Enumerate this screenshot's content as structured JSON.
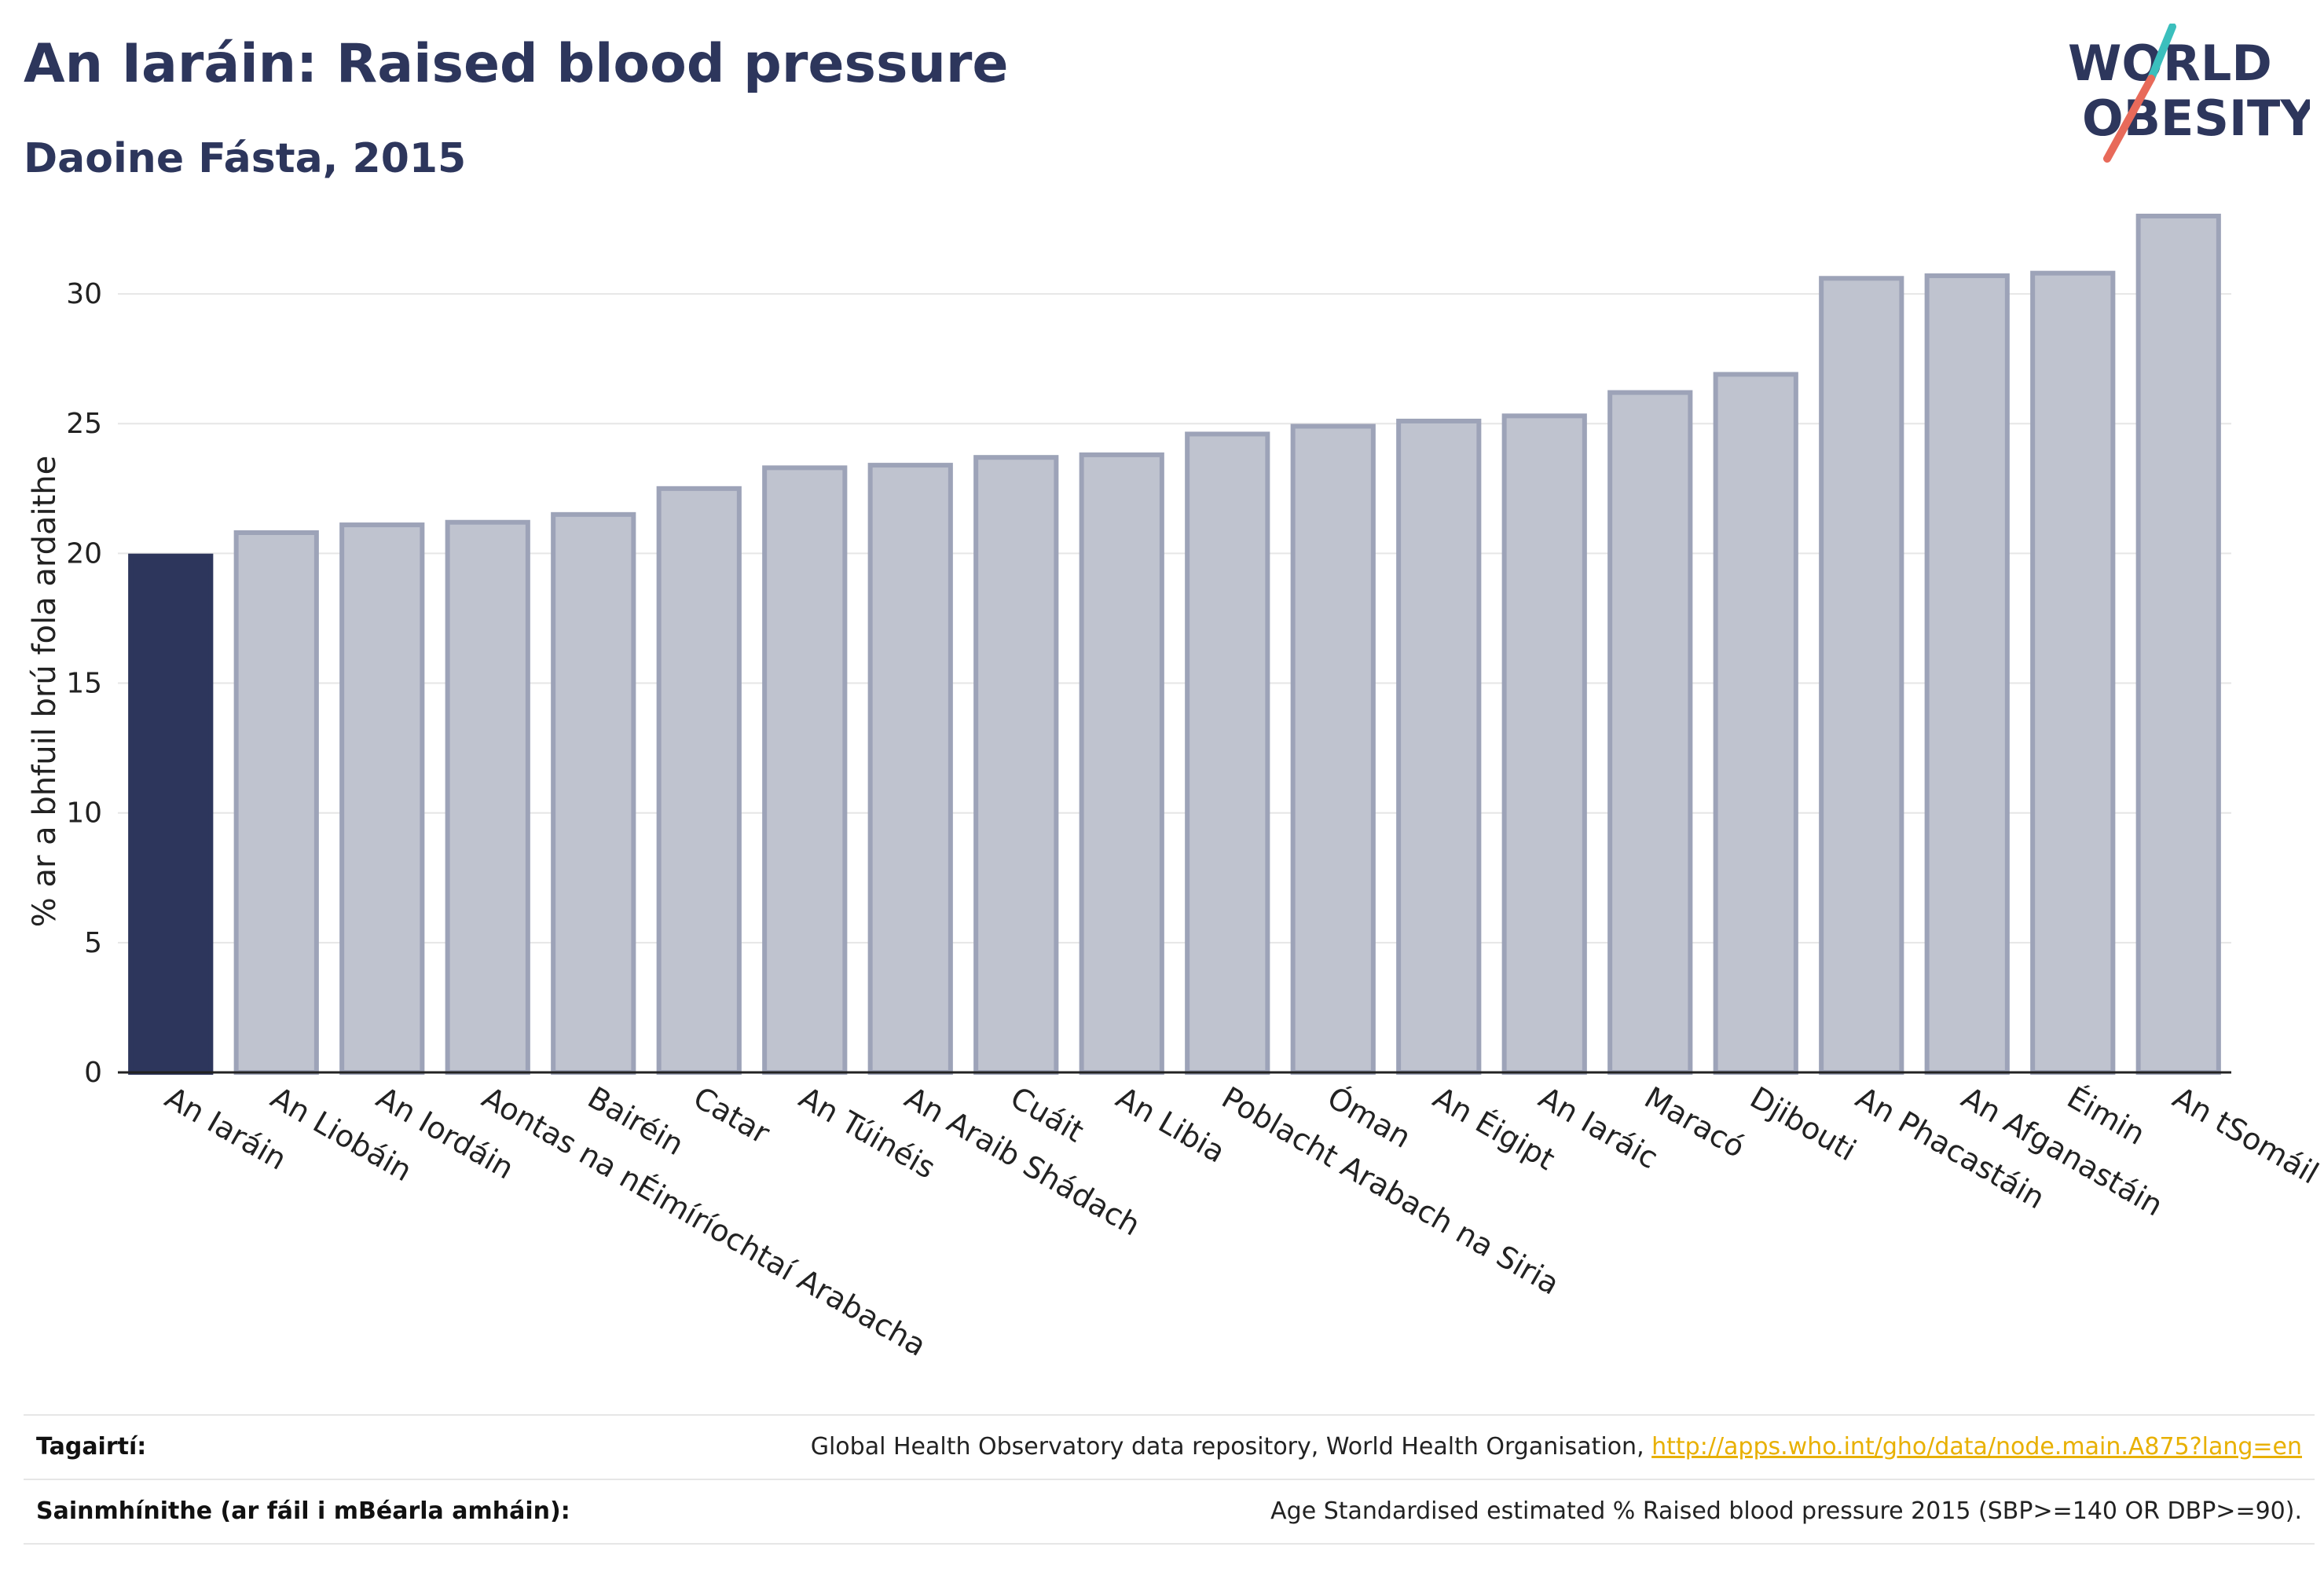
{
  "header": {
    "title": "An Iaráin: Raised blood pressure",
    "subtitle": "Daoine Fásta, 2015"
  },
  "logo": {
    "line1": "WORLD",
    "line2": "OBESITY"
  },
  "colors": {
    "highlight": "#2d365c",
    "bar_fill": "#bfc3cf",
    "bar_stroke": "#9da3b8",
    "grid": "#e6e6e6",
    "link": "#e8b000"
  },
  "chart_data": {
    "type": "bar",
    "ylabel": "% ar a bhfuil brú fola ardaithe",
    "ylim": [
      0,
      33
    ],
    "yticks": [
      0,
      5,
      10,
      15,
      20,
      25,
      30
    ],
    "grid": true,
    "highlight_index": 0,
    "categories": [
      "An Iaráin",
      "An Liobáin",
      "An Iordáin",
      "Aontas na nÉimíríochtaí Arabacha",
      "Bairéin",
      "Catar",
      "An Túinéis",
      "An Araib Shádach",
      "Cuáit",
      "An Libia",
      "Poblacht Arabach na Siria",
      "Óman",
      "An Éigipt",
      "An Iaráic",
      "Maracó",
      "Djibouti",
      "An Phacastáin",
      "An Afganastáin",
      "Éimin",
      "An tSomáil"
    ],
    "values": [
      19.9,
      20.8,
      21.1,
      21.2,
      21.5,
      22.5,
      23.3,
      23.4,
      23.7,
      23.8,
      24.6,
      24.9,
      25.1,
      25.3,
      26.2,
      26.9,
      30.6,
      30.7,
      30.8,
      33.0
    ]
  },
  "footer": {
    "references_label": "Tagairtí:",
    "references_text": "Global Health Observatory data repository, World Health Organisation, ",
    "references_link": "http://apps.who.int/gho/data/node.main.A875?lang=en",
    "definitions_label": "Sainmhínithe (ar fáil i mBéarla amháin):",
    "definitions_text": "Age Standardised estimated % Raised blood pressure 2015 (SBP>=140 OR DBP>=90)."
  }
}
